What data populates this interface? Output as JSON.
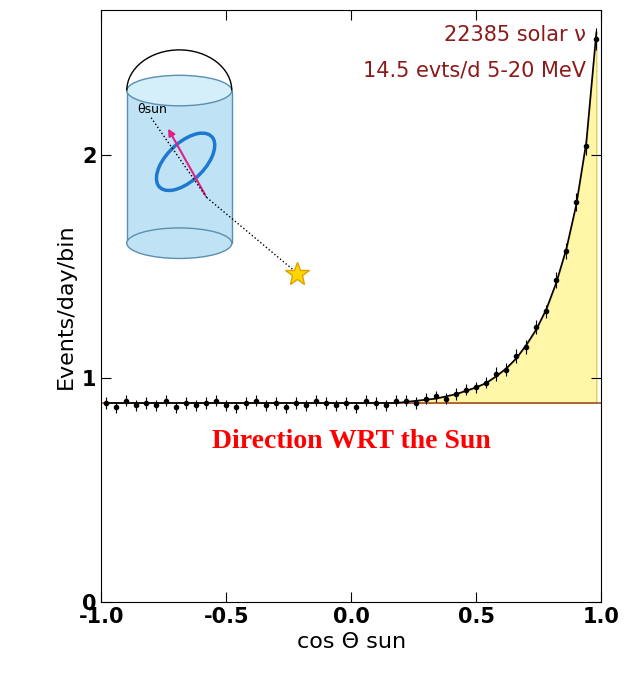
{
  "chart_data": {
    "type": "scatter",
    "xlabel": "cos Θ sun",
    "ylabel": "Events/day/bin",
    "annotations": [
      "22385 solar ν",
      "14.5 evts/d 5-20 MeV",
      "Direction WRT the Sun"
    ],
    "inset_label": "θsun",
    "x": [
      -0.98,
      -0.94,
      -0.9,
      -0.86,
      -0.82,
      -0.78,
      -0.74,
      -0.7,
      -0.66,
      -0.62,
      -0.58,
      -0.54,
      -0.5,
      -0.46,
      -0.42,
      -0.38,
      -0.34,
      -0.3,
      -0.26,
      -0.22,
      -0.18,
      -0.14,
      -0.1,
      -0.06,
      -0.02,
      0.02,
      0.06,
      0.1,
      0.14,
      0.18,
      0.22,
      0.26,
      0.3,
      0.34,
      0.38,
      0.42,
      0.46,
      0.5,
      0.54,
      0.58,
      0.62,
      0.66,
      0.7,
      0.74,
      0.78,
      0.82,
      0.86,
      0.9,
      0.94,
      0.98
    ],
    "values": [
      0.89,
      0.87,
      0.9,
      0.88,
      0.89,
      0.88,
      0.9,
      0.87,
      0.89,
      0.88,
      0.89,
      0.9,
      0.88,
      0.87,
      0.89,
      0.9,
      0.88,
      0.89,
      0.87,
      0.89,
      0.88,
      0.9,
      0.89,
      0.88,
      0.89,
      0.87,
      0.9,
      0.89,
      0.88,
      0.9,
      0.9,
      0.89,
      0.91,
      0.92,
      0.91,
      0.93,
      0.95,
      0.96,
      0.98,
      1.02,
      1.04,
      1.1,
      1.14,
      1.23,
      1.3,
      1.44,
      1.57,
      1.79,
      2.04,
      2.52
    ],
    "errors": [
      0.025,
      0.025,
      0.025,
      0.025,
      0.025,
      0.025,
      0.025,
      0.025,
      0.025,
      0.025,
      0.025,
      0.025,
      0.025,
      0.025,
      0.025,
      0.025,
      0.025,
      0.025,
      0.025,
      0.025,
      0.025,
      0.025,
      0.025,
      0.025,
      0.025,
      0.025,
      0.025,
      0.025,
      0.025,
      0.025,
      0.025,
      0.025,
      0.025,
      0.025,
      0.025,
      0.025,
      0.025,
      0.025,
      0.025,
      0.03,
      0.03,
      0.03,
      0.03,
      0.03,
      0.03,
      0.035,
      0.035,
      0.04,
      0.04,
      0.05
    ],
    "fit": [
      0.89,
      0.89,
      0.89,
      0.89,
      0.89,
      0.89,
      0.89,
      0.89,
      0.89,
      0.89,
      0.89,
      0.89,
      0.89,
      0.89,
      0.89,
      0.89,
      0.89,
      0.89,
      0.89,
      0.89,
      0.89,
      0.89,
      0.89,
      0.89,
      0.89,
      0.89,
      0.89,
      0.89,
      0.89,
      0.89,
      0.895,
      0.9,
      0.905,
      0.91,
      0.92,
      0.93,
      0.945,
      0.96,
      0.98,
      1.01,
      1.045,
      1.09,
      1.15,
      1.22,
      1.31,
      1.43,
      1.58,
      1.78,
      2.06,
      2.55
    ],
    "background": 0.89,
    "color": "#000000",
    "fit_color": "#000000",
    "background_color": "#a0522d",
    "fill_color": "#fff6a8",
    "xlim": [
      -1.0,
      1.0
    ],
    "xticks": [
      {
        "value": -1.0,
        "label": "-1.0"
      },
      {
        "value": -0.5,
        "label": "-0.5"
      },
      {
        "value": 0.0,
        "label": "0.0"
      },
      {
        "value": 0.5,
        "label": "0.5"
      },
      {
        "value": 1.0,
        "label": "1.0"
      }
    ],
    "ylim": [
      0,
      2.65
    ],
    "yticks": [
      0,
      1,
      2
    ],
    "grid": false
  }
}
